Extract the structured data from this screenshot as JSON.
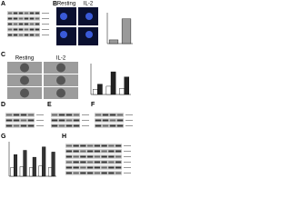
{
  "panels": [
    "A",
    "B",
    "C",
    "D",
    "E",
    "F",
    "G",
    "H"
  ],
  "panel_b": {
    "captions": [
      "Resting",
      "IL-2"
    ]
  },
  "panel_c": {
    "captions": [
      "Resting",
      "IL-2"
    ]
  },
  "chart_b": {
    "ylim": [
      0,
      10
    ],
    "series": [
      {
        "color": "#9a9a9a",
        "values": [
          1.2,
          8
        ]
      }
    ]
  },
  "chart_c": {
    "ylim": [
      0,
      30
    ],
    "series": [
      {
        "color": "#ffffff",
        "values": [
          5,
          8,
          6
        ]
      },
      {
        "color": "#222222",
        "values": [
          10,
          22,
          17
        ]
      }
    ]
  },
  "chart_g": {
    "ylim": [
      0,
      4
    ],
    "series": [
      {
        "color": "#ffffff",
        "values": [
          1,
          1.1,
          1,
          1.2,
          1
        ]
      },
      {
        "color": "#333333",
        "values": [
          2.5,
          3,
          2.2,
          3.4,
          2.8
        ]
      }
    ]
  }
}
